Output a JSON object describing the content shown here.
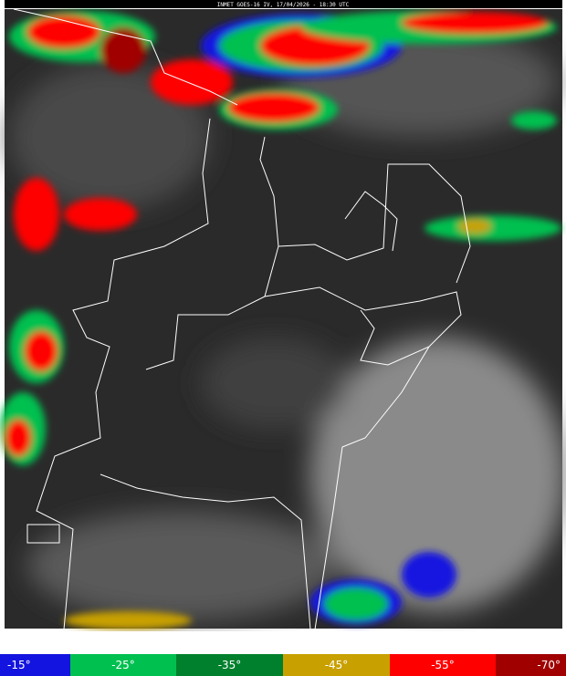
{
  "header": {
    "title": "INMET GOES-16 IV, 17/04/2026 - 18:30 UTC"
  },
  "legend": [
    {
      "label": "-15°",
      "color": "#1414e0"
    },
    {
      "label": "-25°",
      "color": "#00c050"
    },
    {
      "label": "-35°",
      "color": "#00802c"
    },
    {
      "label": "-45°",
      "color": "#c8a000"
    },
    {
      "label": "-55°",
      "color": "#ff0000"
    },
    {
      "label": "-70°",
      "color": "#a00000"
    }
  ]
}
